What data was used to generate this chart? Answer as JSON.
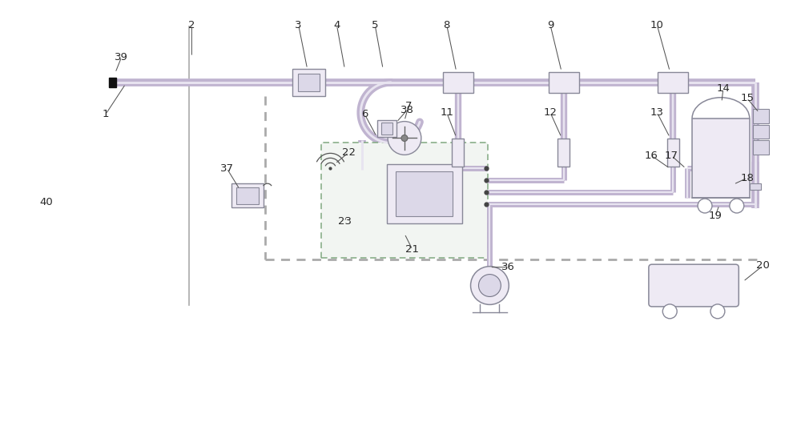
{
  "bg_color": "#ffffff",
  "pipe_color": "#c0b4d0",
  "pipe_inner": "#e8e4f0",
  "box_ec": "#888898",
  "box_fc": "#eeeaf4",
  "box_inner_fc": "#dcd8e8",
  "label_color": "#282828",
  "wall_color": "#aaaaaa",
  "green_box_ec": "#80a880",
  "green_box_fc": "#f2f5f2",
  "dashed_color": "#aaaaaa",
  "fig_width": 10.0,
  "fig_height": 5.32,
  "dpi": 100,
  "xlim": [
    0,
    10
  ],
  "ylim": [
    0,
    5.32
  ]
}
